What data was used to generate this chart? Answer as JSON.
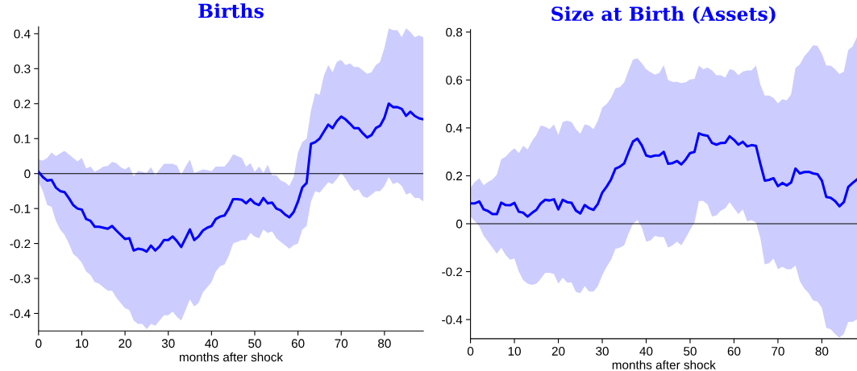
{
  "chart_data": [
    {
      "type": "line",
      "title": "Births",
      "xlabel": "months after shock",
      "xlim": [
        0,
        89
      ],
      "xticks": [
        0,
        10,
        20,
        30,
        40,
        50,
        60,
        70,
        80
      ],
      "ylim": [
        -0.45,
        0.42
      ],
      "yticks": [
        -0.4,
        -0.3,
        -0.2,
        -0.1,
        0,
        0.1,
        0.2,
        0.3,
        0.4
      ],
      "grid": false,
      "ref_lines": [
        {
          "axis": "y",
          "value": 0,
          "color": "#000000"
        }
      ],
      "x": [
        0,
        1,
        2,
        3,
        4,
        5,
        6,
        7,
        8,
        9,
        10,
        11,
        12,
        13,
        14,
        15,
        16,
        17,
        18,
        19,
        20,
        21,
        22,
        23,
        24,
        25,
        26,
        27,
        28,
        29,
        30,
        31,
        32,
        33,
        34,
        35,
        36,
        37,
        38,
        39,
        40,
        41,
        42,
        43,
        44,
        45,
        46,
        47,
        48,
        49,
        50,
        51,
        52,
        53,
        54,
        55,
        56,
        57,
        58,
        59,
        60,
        61,
        62,
        63,
        64,
        65,
        66,
        67,
        68,
        69,
        70,
        71,
        72,
        73,
        74,
        75,
        76,
        77,
        78,
        79,
        80,
        81,
        82,
        83,
        84,
        85,
        86,
        87,
        88,
        89
      ],
      "series": [
        {
          "color": "#0000ff",
          "values": [
            0.005,
            -0.01,
            -0.02,
            -0.018,
            -0.04,
            -0.05,
            -0.053,
            -0.07,
            -0.09,
            -0.1,
            -0.103,
            -0.13,
            -0.135,
            -0.152,
            -0.152,
            -0.155,
            -0.158,
            -0.15,
            -0.163,
            -0.175,
            -0.187,
            -0.185,
            -0.22,
            -0.215,
            -0.217,
            -0.223,
            -0.206,
            -0.22,
            -0.208,
            -0.19,
            -0.19,
            -0.18,
            -0.193,
            -0.21,
            -0.185,
            -0.16,
            -0.19,
            -0.18,
            -0.163,
            -0.155,
            -0.15,
            -0.13,
            -0.123,
            -0.12,
            -0.1,
            -0.073,
            -0.073,
            -0.075,
            -0.085,
            -0.073,
            -0.085,
            -0.09,
            -0.07,
            -0.085,
            -0.083,
            -0.1,
            -0.105,
            -0.117,
            -0.125,
            -0.11,
            -0.08,
            -0.04,
            -0.027,
            0.085,
            0.09,
            0.1,
            0.12,
            0.14,
            0.13,
            0.15,
            0.163,
            0.155,
            0.143,
            0.13,
            0.13,
            0.115,
            0.103,
            0.11,
            0.13,
            0.137,
            0.16,
            0.2,
            0.19,
            0.19,
            0.185,
            0.165,
            0.177,
            0.165,
            0.158,
            0.155
          ],
          "upper": [
            0.04,
            0.037,
            0.045,
            0.06,
            0.05,
            0.058,
            0.065,
            0.055,
            0.045,
            0.035,
            0.045,
            0.015,
            0.02,
            0.005,
            0.012,
            0.02,
            0.022,
            0.033,
            0.03,
            0.018,
            0.012,
            0.02,
            -0.008,
            0.008,
            0.005,
            0.002,
            0.018,
            -0.005,
            0.012,
            0.028,
            0.028,
            0.028,
            0.023,
            -0.003,
            0.02,
            0.04,
            0.002,
            0.007,
            0.012,
            0.01,
            0.007,
            0.02,
            0.02,
            0.02,
            0.035,
            0.055,
            0.05,
            0.045,
            0.02,
            0.03,
            0.005,
            0.02,
            0.002,
            0.025,
            -0.005,
            -0.005,
            -0.02,
            -0.025,
            -0.035,
            -0.01,
            0.06,
            0.09,
            0.1,
            0.18,
            0.23,
            0.225,
            0.28,
            0.31,
            0.29,
            0.32,
            0.325,
            0.31,
            0.315,
            0.305,
            0.305,
            0.295,
            0.285,
            0.29,
            0.31,
            0.32,
            0.36,
            0.415,
            0.41,
            0.41,
            0.39,
            0.415,
            0.405,
            0.39,
            0.395,
            0.39
          ],
          "lower": [
            -0.025,
            -0.05,
            -0.09,
            -0.095,
            -0.135,
            -0.16,
            -0.175,
            -0.2,
            -0.23,
            -0.24,
            -0.255,
            -0.28,
            -0.29,
            -0.31,
            -0.315,
            -0.325,
            -0.335,
            -0.335,
            -0.355,
            -0.37,
            -0.385,
            -0.39,
            -0.42,
            -0.43,
            -0.43,
            -0.445,
            -0.43,
            -0.435,
            -0.42,
            -0.405,
            -0.405,
            -0.395,
            -0.41,
            -0.42,
            -0.39,
            -0.36,
            -0.38,
            -0.37,
            -0.34,
            -0.325,
            -0.31,
            -0.28,
            -0.265,
            -0.26,
            -0.235,
            -0.2,
            -0.195,
            -0.19,
            -0.19,
            -0.17,
            -0.18,
            -0.185,
            -0.16,
            -0.17,
            -0.165,
            -0.185,
            -0.195,
            -0.205,
            -0.215,
            -0.205,
            -0.2,
            -0.16,
            -0.15,
            -0.08,
            -0.05,
            -0.055,
            -0.04,
            -0.025,
            -0.03,
            -0.015,
            0.002,
            -0.015,
            -0.035,
            -0.05,
            -0.045,
            -0.065,
            -0.07,
            -0.06,
            -0.05,
            -0.05,
            -0.035,
            -0.01,
            -0.03,
            -0.025,
            -0.035,
            -0.06,
            -0.055,
            -0.07,
            -0.07,
            -0.08
          ]
        }
      ]
    },
    {
      "type": "line",
      "title": "Size at Birth (Assets)",
      "xlabel": "months after shock",
      "xlim": [
        0,
        88
      ],
      "xticks": [
        0,
        10,
        20,
        30,
        40,
        50,
        60,
        70,
        80
      ],
      "ylim": [
        -0.48,
        0.81
      ],
      "yticks": [
        -0.4,
        -0.2,
        0,
        0.2,
        0.4,
        0.6,
        0.8
      ],
      "grid": false,
      "ref_lines": [
        {
          "axis": "y",
          "value": 0,
          "color": "#000000"
        }
      ],
      "x": [
        0,
        1,
        2,
        3,
        4,
        5,
        6,
        7,
        8,
        9,
        10,
        11,
        12,
        13,
        14,
        15,
        16,
        17,
        18,
        19,
        20,
        21,
        22,
        23,
        24,
        25,
        26,
        27,
        28,
        29,
        30,
        31,
        32,
        33,
        34,
        35,
        36,
        37,
        38,
        39,
        40,
        41,
        42,
        43,
        44,
        45,
        46,
        47,
        48,
        49,
        50,
        51,
        52,
        53,
        54,
        55,
        56,
        57,
        58,
        59,
        60,
        61,
        62,
        63,
        64,
        65,
        66,
        67,
        68,
        69,
        70,
        71,
        72,
        73,
        74,
        75,
        76,
        77,
        78,
        79,
        80,
        81,
        82,
        83,
        84,
        85,
        86,
        87,
        88
      ],
      "series": [
        {
          "color": "#0000ff",
          "values": [
            0.085,
            0.085,
            0.093,
            0.06,
            0.053,
            0.04,
            0.04,
            0.088,
            0.078,
            0.077,
            0.087,
            0.05,
            0.046,
            0.03,
            0.045,
            0.058,
            0.085,
            0.1,
            0.097,
            0.102,
            0.06,
            0.1,
            0.09,
            0.087,
            0.055,
            0.043,
            0.078,
            0.065,
            0.058,
            0.083,
            0.13,
            0.155,
            0.185,
            0.23,
            0.238,
            0.252,
            0.3,
            0.343,
            0.355,
            0.327,
            0.285,
            0.28,
            0.285,
            0.285,
            0.3,
            0.25,
            0.253,
            0.262,
            0.248,
            0.268,
            0.295,
            0.3,
            0.377,
            0.37,
            0.367,
            0.337,
            0.33,
            0.337,
            0.338,
            0.365,
            0.35,
            0.33,
            0.342,
            0.323,
            0.328,
            0.325,
            0.25,
            0.18,
            0.183,
            0.19,
            0.157,
            0.17,
            0.16,
            0.172,
            0.23,
            0.21,
            0.216,
            0.217,
            0.21,
            0.207,
            0.18,
            0.112,
            0.108,
            0.095,
            0.073,
            0.09,
            0.153,
            0.17,
            0.185
          ],
          "upper": [
            0.15,
            0.175,
            0.19,
            0.16,
            0.175,
            0.185,
            0.205,
            0.27,
            0.28,
            0.3,
            0.315,
            0.295,
            0.325,
            0.31,
            0.345,
            0.37,
            0.41,
            0.405,
            0.395,
            0.415,
            0.37,
            0.425,
            0.43,
            0.425,
            0.395,
            0.375,
            0.415,
            0.41,
            0.395,
            0.43,
            0.485,
            0.5,
            0.525,
            0.565,
            0.57,
            0.59,
            0.64,
            0.685,
            0.69,
            0.67,
            0.645,
            0.632,
            0.622,
            0.63,
            0.662,
            0.6,
            0.592,
            0.592,
            0.587,
            0.59,
            0.602,
            0.605,
            0.66,
            0.645,
            0.652,
            0.64,
            0.62,
            0.62,
            0.61,
            0.645,
            0.64,
            0.62,
            0.635,
            0.64,
            0.64,
            0.66,
            0.58,
            0.535,
            0.535,
            0.525,
            0.502,
            0.52,
            0.515,
            0.54,
            0.65,
            0.665,
            0.7,
            0.72,
            0.745,
            0.742,
            0.71,
            0.66,
            0.66,
            0.645,
            0.625,
            0.635,
            0.725,
            0.74,
            0.78
          ],
          "lower": [
            0.03,
            0.01,
            -0.01,
            -0.05,
            -0.075,
            -0.1,
            -0.125,
            -0.1,
            -0.13,
            -0.15,
            -0.145,
            -0.2,
            -0.235,
            -0.25,
            -0.255,
            -0.25,
            -0.23,
            -0.205,
            -0.205,
            -0.21,
            -0.25,
            -0.225,
            -0.245,
            -0.245,
            -0.285,
            -0.29,
            -0.26,
            -0.283,
            -0.283,
            -0.26,
            -0.215,
            -0.18,
            -0.15,
            -0.105,
            -0.1,
            -0.09,
            -0.04,
            0,
            0.015,
            -0.015,
            -0.075,
            -0.07,
            -0.05,
            -0.055,
            -0.055,
            -0.1,
            -0.09,
            -0.075,
            -0.09,
            -0.06,
            -0.025,
            0.005,
            0.095,
            0.095,
            0.08,
            0.03,
            0.035,
            0.055,
            0.065,
            0.09,
            0.065,
            0.04,
            0.06,
            0.01,
            0.015,
            0.005,
            -0.06,
            -0.17,
            -0.165,
            -0.145,
            -0.19,
            -0.18,
            -0.19,
            -0.19,
            -0.175,
            -0.24,
            -0.27,
            -0.29,
            -0.32,
            -0.325,
            -0.35,
            -0.435,
            -0.44,
            -0.46,
            -0.475,
            -0.46,
            -0.41,
            -0.41,
            -0.4
          ]
        }
      ]
    }
  ]
}
